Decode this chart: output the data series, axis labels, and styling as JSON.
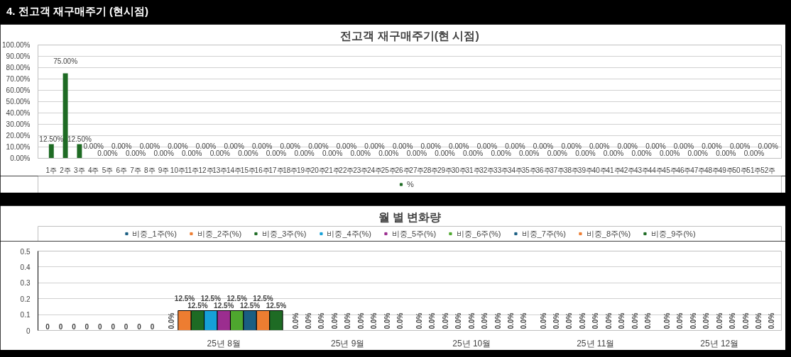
{
  "chart_data": [
    {
      "type": "bar",
      "title": "전고객 재구매주기(현 시점)",
      "annotations": [
        "4. 전고객 재구매주기 (현시점)"
      ],
      "categories": [
        "1주",
        "2주",
        "3주",
        "4주",
        "5주",
        "6주",
        "7주",
        "8주",
        "9주",
        "10주",
        "11주",
        "12주",
        "13주",
        "14주",
        "15주",
        "16주",
        "17주",
        "18주",
        "19주",
        "20주",
        "21주",
        "22주",
        "23주",
        "24주",
        "25주",
        "26주",
        "27주",
        "28주",
        "29주",
        "30주",
        "31주",
        "32주",
        "33주",
        "34주",
        "35주",
        "36주",
        "37주",
        "38주",
        "39주",
        "40주",
        "41주",
        "42주",
        "43주",
        "44주",
        "45주",
        "46주",
        "47주",
        "48주",
        "49주",
        "50주",
        "51주",
        "52주"
      ],
      "series": [
        {
          "name": "%",
          "color": "#1e6b24",
          "values": [
            12.5,
            75,
            12.5,
            0,
            0,
            0,
            0,
            0,
            0,
            0,
            0,
            0,
            0,
            0,
            0,
            0,
            0,
            0,
            0,
            0,
            0,
            0,
            0,
            0,
            0,
            0,
            0,
            0,
            0,
            0,
            0,
            0,
            0,
            0,
            0,
            0,
            0,
            0,
            0,
            0,
            0,
            0,
            0,
            0,
            0,
            0,
            0,
            0,
            0,
            0,
            0,
            0
          ],
          "value_labels": [
            "12.50%",
            "75.00%",
            "12.50%",
            "0.00%",
            "0.00%",
            "0.00%",
            "0.00%",
            "0.00%",
            "0.00%",
            "0.00%",
            "0.00%",
            "0.00%",
            "0.00%",
            "0.00%",
            "0.00%",
            "0.00%",
            "0.00%",
            "0.00%",
            "0.00%",
            "0.00%",
            "0.00%",
            "0.00%",
            "0.00%",
            "0.00%",
            "0.00%",
            "0.00%",
            "0.00%",
            "0.00%",
            "0.00%",
            "0.00%",
            "0.00%",
            "0.00%",
            "0.00%",
            "0.00%",
            "0.00%",
            "0.00%",
            "0.00%",
            "0.00%",
            "0.00%",
            "0.00%",
            "0.00%",
            "0.00%",
            "0.00%",
            "0.00%",
            "0.00%",
            "0.00%",
            "0.00%",
            "0.00%",
            "0.00%",
            "0.00%",
            "0.00%",
            "0.00%"
          ]
        }
      ],
      "ylim": [
        0,
        100
      ],
      "yticks": [
        {
          "value": 0,
          "label": "0.00%"
        },
        {
          "value": 10,
          "label": "10.00%"
        },
        {
          "value": 20,
          "label": "20.00%"
        },
        {
          "value": 30,
          "label": "30.00%"
        },
        {
          "value": 40,
          "label": "40.00%"
        },
        {
          "value": 50,
          "label": "50.00%"
        },
        {
          "value": 60,
          "label": "60.00%"
        },
        {
          "value": 70,
          "label": "70.00%"
        },
        {
          "value": 80,
          "label": "80.00%"
        },
        {
          "value": 90,
          "label": "90.00%"
        },
        {
          "value": 100,
          "label": "100.00%"
        }
      ],
      "grid": "y",
      "legend": "bottom"
    },
    {
      "type": "bar",
      "title": "월 별 변화량",
      "categories": [
        null,
        "25년 8월",
        "25년 9월",
        "25년 10월",
        "25년 11월",
        "25년 12월"
      ],
      "series": [
        {
          "name": "비중_1주(%)",
          "color": "#1a5e82",
          "values": [
            0,
            0,
            0,
            0,
            0,
            0
          ],
          "value_labels": [
            "0",
            "0.0%",
            "0.0%",
            "0.0%",
            "0.0%",
            "0.0%"
          ]
        },
        {
          "name": "비중_2주(%)",
          "color": "#ed7d31",
          "values": [
            0,
            0.125,
            0,
            0,
            0,
            0
          ],
          "value_labels": [
            "0",
            "12.5%",
            "0.0%",
            "0.0%",
            "0.0%",
            "0.0%"
          ]
        },
        {
          "name": "비중_3주(%)",
          "color": "#1e6b24",
          "values": [
            0,
            0.125,
            0,
            0,
            0,
            0
          ],
          "value_labels": [
            "0",
            "12.5%",
            "0.0%",
            "0.0%",
            "0.0%",
            "0.0%"
          ]
        },
        {
          "name": "비중_4주(%)",
          "color": "#16a0d8",
          "values": [
            0,
            0.125,
            0,
            0,
            0,
            0
          ],
          "value_labels": [
            "0",
            "12.5%",
            "0.0%",
            "0.0%",
            "0.0%",
            "0.0%"
          ]
        },
        {
          "name": "비중_5주(%)",
          "color": "#9b2d8f",
          "values": [
            0,
            0.125,
            0,
            0,
            0,
            0
          ],
          "value_labels": [
            "0",
            "12.5%",
            "0.0%",
            "0.0%",
            "0.0%",
            "0.0%"
          ]
        },
        {
          "name": "비중_6주(%)",
          "color": "#4ea72e",
          "values": [
            0,
            0.125,
            0,
            0,
            0,
            0
          ],
          "value_labels": [
            "0",
            "12.5%",
            "0.0%",
            "0.0%",
            "0.0%",
            "0.0%"
          ]
        },
        {
          "name": "비중_7주(%)",
          "color": "#1a5e82",
          "values": [
            0,
            0.125,
            0,
            0,
            0,
            0
          ],
          "value_labels": [
            "0",
            "12.5%",
            "0.0%",
            "0.0%",
            "0.0%",
            "0.0%"
          ]
        },
        {
          "name": "비중_8주(%)",
          "color": "#ed7d31",
          "values": [
            0,
            0.125,
            0,
            0,
            0,
            0
          ],
          "value_labels": [
            "0",
            "12.5%",
            "0.0%",
            "0.0%",
            "0.0%",
            "0.0%"
          ]
        },
        {
          "name": "비중_9주(%)",
          "color": "#1e6b24",
          "values": [
            0,
            0.125,
            0,
            0,
            0,
            0
          ],
          "value_labels": [
            "0",
            "12.5%",
            "0.0%",
            "0.0%",
            "0.0%",
            "0.0%"
          ]
        }
      ],
      "ylim": [
        0,
        0.5
      ],
      "yticks": [
        0,
        0.1,
        0.2,
        0.3,
        0.4,
        0.5
      ],
      "grid": "y",
      "legend": "top"
    }
  ]
}
